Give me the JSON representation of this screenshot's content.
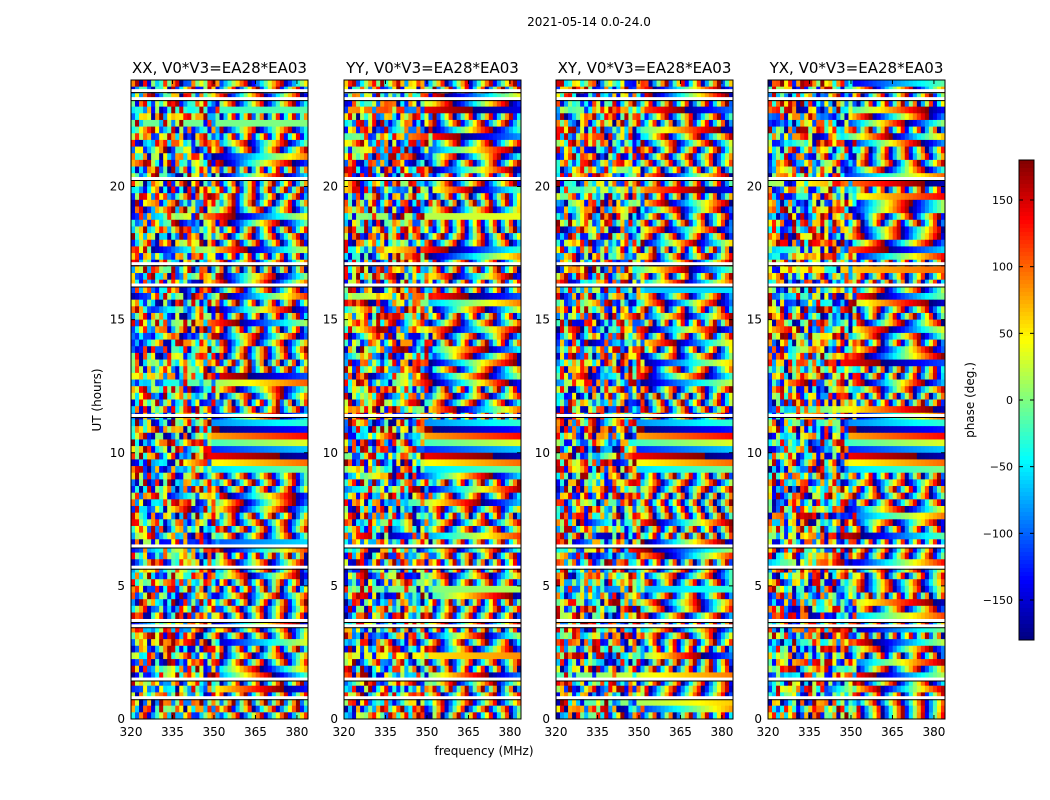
{
  "suptitle": "2021-05-14 0.0-24.0",
  "xlabel": "frequency (MHz)",
  "ylabel": "UT (hours)",
  "colorbar": {
    "label": "phase (deg.)",
    "range": [
      -180,
      180
    ],
    "ticks": [
      150,
      100,
      50,
      0,
      -50,
      -100,
      -150
    ],
    "tick_labels": [
      "150",
      "100",
      "50",
      "0",
      "−50",
      "−100",
      "−150"
    ],
    "colormap": "jet"
  },
  "chart_data": {
    "type": "heatmap",
    "x_range": [
      320,
      384
    ],
    "y_range": [
      0,
      24
    ],
    "x_ticks": [
      320,
      335,
      350,
      365,
      380
    ],
    "x_tick_labels": [
      "320",
      "335",
      "350",
      "365",
      "380"
    ],
    "y_ticks": [
      0,
      5,
      10,
      15,
      20
    ],
    "y_tick_labels": [
      "0",
      "5",
      "10",
      "15",
      "20"
    ],
    "value_range": [
      -180,
      180
    ],
    "value_label": "phase (deg.)",
    "panels": [
      {
        "title": "XX, V0*V3=EA28*EA03",
        "seed": 1
      },
      {
        "title": "YY, V0*V3=EA28*EA03",
        "seed": 2
      },
      {
        "title": "XY, V0*V3=EA28*EA03",
        "seed": 3
      },
      {
        "title": "YX, V0*V3=EA28*EA03",
        "seed": 4
      }
    ],
    "flagged_ut_hours": [
      0.8,
      1.5,
      3.5,
      3.7,
      5.7,
      6.5,
      11.4,
      16.3,
      17.1,
      20.3,
      23.3,
      23.6
    ]
  }
}
